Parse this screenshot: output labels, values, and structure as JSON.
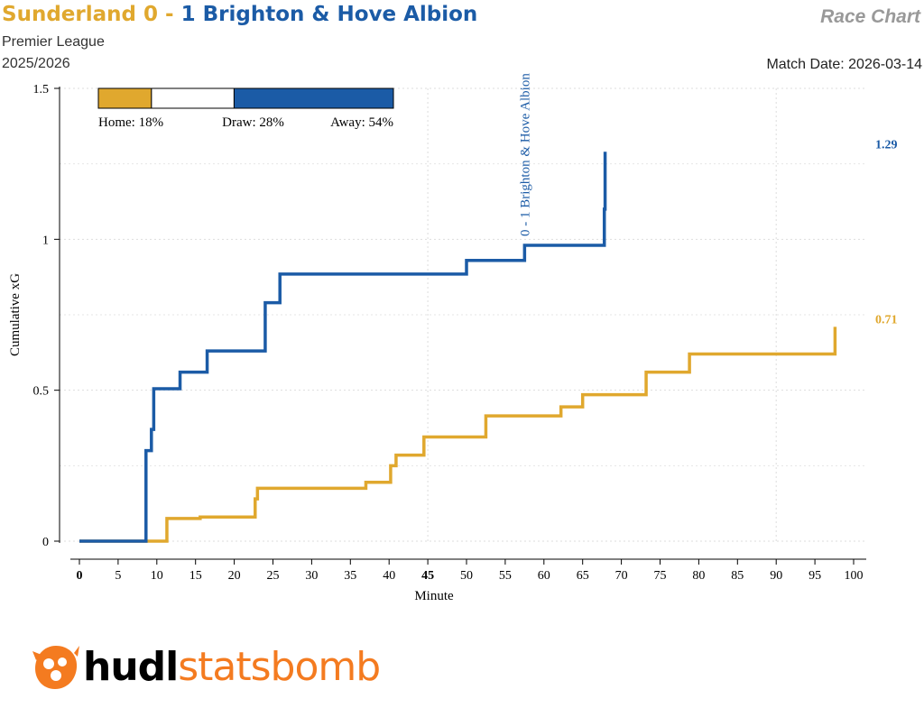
{
  "header": {
    "home_team": "Sunderland",
    "home_score": "0",
    "separator": "-",
    "away_score": "1",
    "away_team": "Brighton & Hove Albion",
    "competition": "Premier League",
    "season": "2025/2026",
    "chart_name": "Race Chart",
    "match_date": "Match Date: 2026-03-14"
  },
  "colors": {
    "home": "#E0A82E",
    "away": "#1B5BA6",
    "logo_accent": "#F47B20"
  },
  "logo": {
    "text_dark": "hudl",
    "text_accent": "statsbomb",
    "icon": "statsbomb-logo-icon"
  },
  "chart_data": {
    "type": "line",
    "xlabel": "Minute",
    "ylabel": "Cumulative xG",
    "xlim": [
      0,
      100
    ],
    "ylim": [
      0,
      1.5
    ],
    "xticks": [
      0,
      5,
      10,
      15,
      20,
      25,
      30,
      35,
      40,
      45,
      50,
      55,
      60,
      65,
      70,
      75,
      80,
      85,
      90,
      95,
      100
    ],
    "xtick_labels": [
      "0",
      "5",
      "10",
      "15",
      "20",
      "25",
      "30",
      "35",
      "40",
      "45",
      "50",
      "55",
      "60",
      "65",
      "70",
      "75",
      "80",
      "85",
      "90",
      "95",
      "100"
    ],
    "bold_xticks": [
      "0",
      "45"
    ],
    "yticks": [
      0,
      0.5,
      1,
      1.5
    ],
    "ytick_labels": [
      "0",
      "0.5",
      "1",
      "1.5"
    ],
    "grid": true,
    "probabilities": {
      "home": 18,
      "draw": 28,
      "away": 54,
      "home_label": "Home: 18%",
      "draw_label": "Draw: 28%",
      "away_label": "Away: 54%"
    },
    "series": [
      {
        "name": "Sunderland",
        "color": "#E0A82E",
        "final_label": "0.71",
        "x": [
          0,
          9.3,
          11.3,
          15.6,
          22.7,
          23.0,
          37.0,
          40.2,
          40.9,
          44.5,
          52.5,
          62.2,
          65.0,
          73.2,
          78.8,
          97.6
        ],
        "y": [
          0,
          0,
          0.075,
          0.08,
          0.14,
          0.175,
          0.195,
          0.25,
          0.285,
          0.345,
          0.415,
          0.445,
          0.485,
          0.56,
          0.62,
          0.71
        ]
      },
      {
        "name": "Brighton & Hove Albion",
        "color": "#1B5BA6",
        "final_label": "1.29",
        "x": [
          0,
          8.6,
          9.3,
          9.6,
          13.0,
          16.5,
          24.0,
          25.9,
          50.0,
          57.5,
          67.8,
          67.9
        ],
        "y": [
          0,
          0.3,
          0.37,
          0.505,
          0.56,
          0.63,
          0.79,
          0.885,
          0.93,
          0.98,
          1.1,
          1.29
        ]
      }
    ],
    "annotations": [
      {
        "minute": 57.5,
        "text": "0 - 1 Brighton & Hove Albion",
        "team": "away"
      }
    ]
  }
}
